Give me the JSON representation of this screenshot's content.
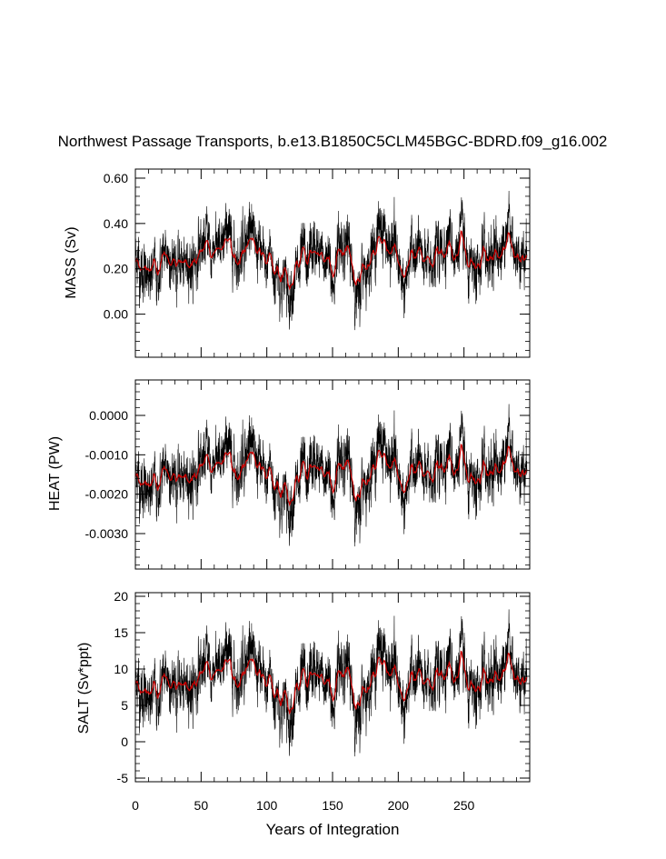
{
  "title": "Northwest Passage Transports, b.e13.B1850C5CLM45BGC-BDRD.f09_g16.002",
  "colors": {
    "raw": "#000000",
    "smoothed": "#cc0000",
    "background": "#ffffff"
  },
  "chart_data": {
    "type": "line",
    "shared_x": {
      "xlabel": "Years of Integration",
      "xlim": [
        0,
        300
      ],
      "ticks": [
        0,
        50,
        100,
        150,
        200,
        250
      ],
      "tick_labels": [
        "0",
        "50",
        "100",
        "150",
        "200",
        "250"
      ]
    },
    "panels": [
      {
        "id": "mass",
        "ylabel": "MASS (Sv)",
        "ylim": [
          -0.19,
          0.64
        ],
        "ticks": [
          0.0,
          0.2,
          0.4,
          0.6
        ],
        "tick_labels": [
          "0.00",
          "0.20",
          "0.40",
          "0.60"
        ],
        "mean": 0.24,
        "spread": 0.085,
        "smooth_spread": 0.03,
        "min": -0.13,
        "max": 0.6
      },
      {
        "id": "heat",
        "ylabel": "HEAT (PW)",
        "ylim": [
          -0.0039,
          0.0009
        ],
        "ticks": [
          0.0,
          -0.001,
          -0.002,
          -0.003
        ],
        "tick_labels": [
          "0.0000",
          "-0.0010",
          "-0.0020",
          "-0.0030"
        ],
        "mean": -0.0015,
        "spread": 0.0005,
        "smooth_spread": 0.00018,
        "min": -0.0037,
        "max": 0.0007
      },
      {
        "id": "salt",
        "ylabel": "SALT (Sv*ppt)",
        "ylim": [
          -5.5,
          20.5
        ],
        "ticks": [
          -5,
          0,
          5,
          10,
          15,
          20
        ],
        "tick_labels": [
          "-5",
          "0",
          "5",
          "10",
          "15",
          "20"
        ],
        "mean": 8.2,
        "spread": 2.8,
        "smooth_spread": 1.0,
        "min": -5.0,
        "max": 19.5
      }
    ],
    "series": [
      {
        "name": "",
        "kind": "monthly",
        "color": "#000000"
      },
      {
        "name": "",
        "kind": "running-mean",
        "color": "#cc0000"
      }
    ],
    "grid": false,
    "legend": "none"
  }
}
